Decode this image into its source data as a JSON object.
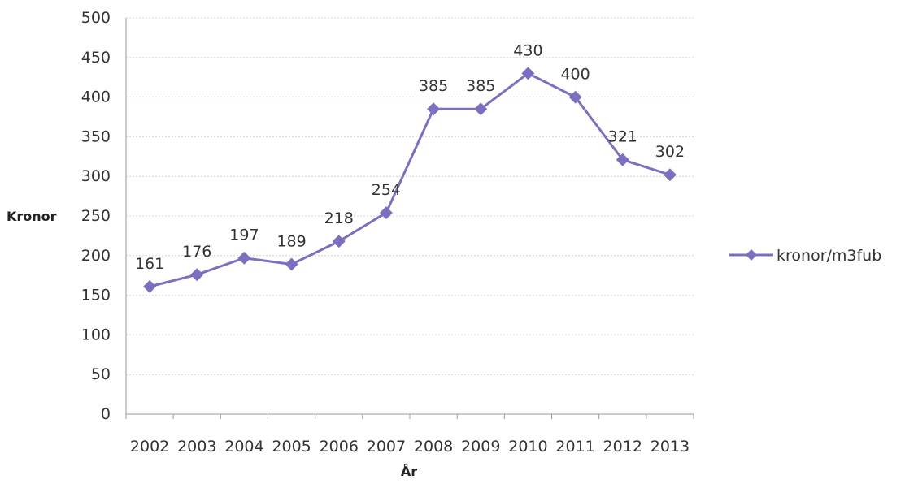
{
  "chart_data": {
    "type": "line",
    "title": "",
    "xlabel": "År",
    "ylabel": "Kronor",
    "ylim": [
      0,
      500
    ],
    "yticks": [
      0,
      50,
      100,
      150,
      200,
      250,
      300,
      350,
      400,
      450,
      500
    ],
    "categories": [
      "2002",
      "2003",
      "2004",
      "2005",
      "2006",
      "2007",
      "2008",
      "2009",
      "2010",
      "2011",
      "2012",
      "2013"
    ],
    "series": [
      {
        "name": "kronor/m3fub",
        "color": "#7d6fbf",
        "marker": "diamond",
        "values": [
          161,
          176,
          197,
          189,
          218,
          254,
          385,
          385,
          430,
          400,
          321,
          302
        ]
      }
    ],
    "grid": true,
    "legend": "right"
  }
}
